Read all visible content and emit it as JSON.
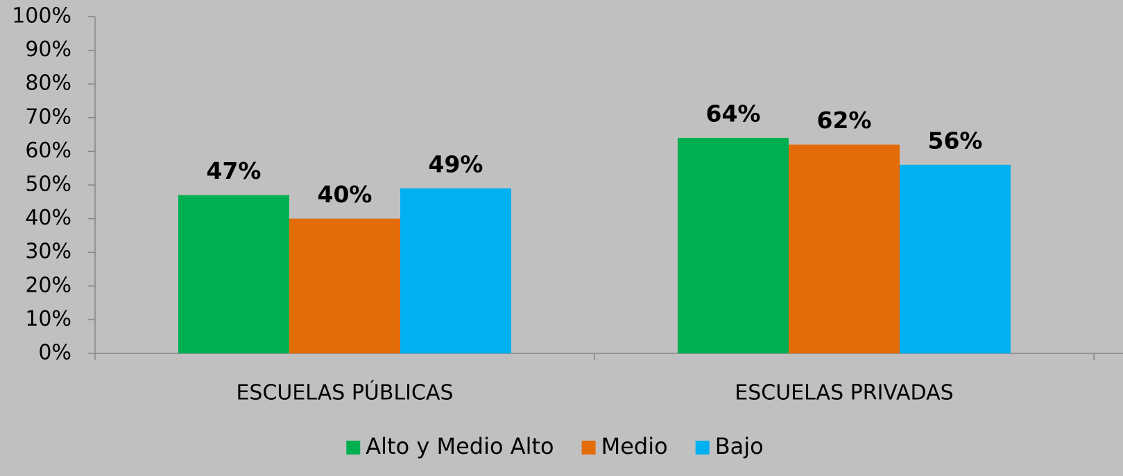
{
  "chart_data": {
    "type": "bar",
    "categories": [
      "ESCUELAS PÚBLICAS",
      "ESCUELAS PRIVADAS"
    ],
    "series": [
      {
        "name": "Alto y Medio Alto",
        "color": "#00b050",
        "values": [
          47,
          64
        ],
        "value_labels": [
          "47%",
          "64%"
        ]
      },
      {
        "name": "Medio",
        "color": "#e36c09",
        "values": [
          40,
          62
        ],
        "value_labels": [
          "40%",
          "62%"
        ]
      },
      {
        "name": "Bajo",
        "color": "#00b0f0",
        "values": [
          49,
          56
        ],
        "value_labels": [
          "49%",
          "56%"
        ]
      }
    ],
    "ylim": [
      0,
      100
    ],
    "yticks": [
      {
        "value": 0,
        "label": "0%"
      },
      {
        "value": 10,
        "label": "10%"
      },
      {
        "value": 20,
        "label": "20%"
      },
      {
        "value": 30,
        "label": "30%"
      },
      {
        "value": 40,
        "label": "40%"
      },
      {
        "value": 50,
        "label": "50%"
      },
      {
        "value": 60,
        "label": "60%"
      },
      {
        "value": 70,
        "label": "70%"
      },
      {
        "value": 80,
        "label": "80%"
      },
      {
        "value": 90,
        "label": "90%"
      },
      {
        "value": 100,
        "label": "100%"
      }
    ],
    "grid": false,
    "legend": "bottom"
  }
}
